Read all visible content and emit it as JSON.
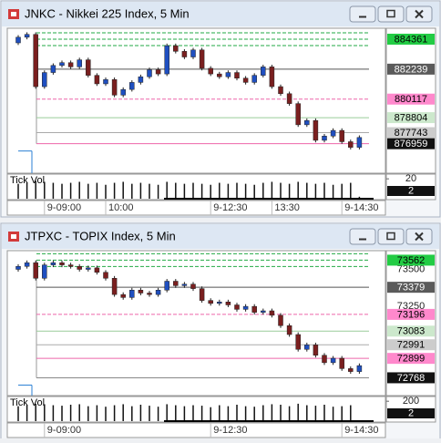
{
  "windows": [
    {
      "title": "JNKC - Nikkei 225 Index, 5 Min",
      "ylim": [
        875000,
        885070
      ],
      "up_color": "#1f4fc0",
      "down_color": "#7a1f1f",
      "levels": [
        {
          "value": 884361,
          "bg": "#22cc44",
          "fg": "#000000",
          "line": "#22aa44",
          "dash": true
        },
        {
          "value": 882239,
          "bg": "#5a5a5a",
          "fg": "#ffffff",
          "line": "#555555",
          "dash": false
        },
        {
          "value": 880117,
          "bg": "#ff88cc",
          "fg": "#000000",
          "line": "#ee66aa",
          "dash": true
        },
        {
          "value": 878804,
          "bg": "#cce8cc",
          "fg": "#000000",
          "line": "#99cc99",
          "dash": false
        },
        {
          "value": 877743,
          "bg": "#cccccc",
          "fg": "#000000",
          "line": "#aaaaaa",
          "dash": false
        },
        {
          "value": 876959,
          "bg": "#111111",
          "fg": "#ffffff",
          "line": "#ee66aa",
          "dash": false
        }
      ],
      "categories": [
        null,
        null,
        null,
        "9-09:00",
        null,
        null,
        null,
        null,
        null,
        null,
        "10:00",
        null,
        null,
        null,
        null,
        null,
        null,
        null,
        null,
        null,
        null,
        null,
        "9-12:30",
        null,
        null,
        null,
        null,
        null,
        null,
        "13:30",
        null,
        null,
        null,
        null,
        null,
        null,
        null,
        "9-14:30",
        null,
        null
      ],
      "candles": [
        [
          884100,
          884650,
          883950,
          884500
        ],
        [
          884500,
          884850,
          884350,
          884700
        ],
        [
          884700,
          884850,
          880850,
          881000
        ],
        [
          881000,
          882150,
          880850,
          882000
        ],
        [
          882000,
          882650,
          881850,
          882500
        ],
        [
          882500,
          882850,
          882350,
          882700
        ],
        [
          882700,
          882850,
          882250,
          882400
        ],
        [
          882400,
          883050,
          882250,
          882900
        ],
        [
          882900,
          883050,
          881650,
          881800
        ],
        [
          881800,
          881950,
          881050,
          881200
        ],
        [
          881200,
          881650,
          881050,
          881500
        ],
        [
          881500,
          881650,
          880250,
          880400
        ],
        [
          880400,
          880950,
          880250,
          880800
        ],
        [
          880800,
          881450,
          880650,
          881300
        ],
        [
          881300,
          881850,
          881150,
          881700
        ],
        [
          881700,
          882350,
          881550,
          882200
        ],
        [
          882200,
          882350,
          881750,
          881900
        ],
        [
          881900,
          884050,
          881750,
          883900
        ],
        [
          883900,
          884050,
          883350,
          883500
        ],
        [
          883500,
          883650,
          882950,
          883100
        ],
        [
          883100,
          883750,
          882950,
          883600
        ],
        [
          883600,
          883750,
          882150,
          882300
        ],
        [
          882300,
          882450,
          881750,
          881900
        ],
        [
          881900,
          882050,
          881550,
          881700
        ],
        [
          881700,
          882150,
          881550,
          882000
        ],
        [
          882000,
          882150,
          881450,
          881600
        ],
        [
          881600,
          881750,
          881150,
          881300
        ],
        [
          881300,
          881950,
          881150,
          881800
        ],
        [
          881800,
          882550,
          881650,
          882400
        ],
        [
          882400,
          882550,
          880850,
          881000
        ],
        [
          881000,
          881150,
          880350,
          880500
        ],
        [
          880500,
          880650,
          879650,
          879800
        ],
        [
          879800,
          879950,
          878150,
          878300
        ],
        [
          878300,
          878750,
          878150,
          878600
        ],
        [
          878600,
          878750,
          877050,
          877200
        ],
        [
          877200,
          877650,
          877050,
          877500
        ],
        [
          877500,
          878050,
          877350,
          877900
        ],
        [
          877900,
          878050,
          876950,
          877100
        ],
        [
          877100,
          877250,
          876550,
          876700
        ],
        [
          876700,
          877550,
          876550,
          877400
        ]
      ],
      "volume": {
        "label": "Tick Vol",
        "ylim": [
          0,
          22
        ],
        "ticks": [
          20
        ],
        "values": [
          15,
          16,
          18,
          17,
          16,
          15,
          16,
          17,
          15,
          16,
          14,
          16,
          17,
          15,
          16,
          15,
          14,
          17,
          16,
          15,
          16,
          15,
          14,
          16,
          15,
          16,
          15,
          14,
          16,
          17,
          16,
          15,
          17,
          16,
          15,
          16,
          14,
          15,
          16,
          2
        ]
      }
    },
    {
      "title": "JTPXC - TOPIX Index, 5 Min",
      "ylim": [
        72660,
        73620
      ],
      "up_color": "#1f4fc0",
      "down_color": "#7a1f1f",
      "yticks": [
        73500,
        73250
      ],
      "levels": [
        {
          "value": 73562,
          "bg": "#22cc44",
          "fg": "#000000",
          "line": "#22aa44",
          "dash": true
        },
        {
          "value": 73379,
          "bg": "#5a5a5a",
          "fg": "#ffffff",
          "line": "#555555",
          "dash": false
        },
        {
          "value": 73196,
          "bg": "#ff88cc",
          "fg": "#000000",
          "line": "#ee66aa",
          "dash": true
        },
        {
          "value": 73083,
          "bg": "#cce8cc",
          "fg": "#000000",
          "line": "#99cc99",
          "dash": false
        },
        {
          "value": 72991,
          "bg": "#cccccc",
          "fg": "#000000",
          "line": "#aaaaaa",
          "dash": false
        },
        {
          "value": 72899,
          "bg": "#ff88cc",
          "fg": "#000000",
          "line": "#ee66aa",
          "dash": false
        },
        {
          "value": 72768,
          "bg": "#111111",
          "fg": "#ffffff",
          "line": "#888888",
          "dash": false
        }
      ],
      "categories": [
        null,
        null,
        null,
        "9-09:00",
        null,
        null,
        null,
        null,
        null,
        null,
        null,
        null,
        null,
        null,
        null,
        null,
        null,
        null,
        null,
        null,
        null,
        null,
        "9-12:30",
        null,
        null,
        null,
        null,
        null,
        null,
        null,
        null,
        null,
        null,
        null,
        null,
        null,
        null,
        "9-14:30",
        null,
        null
      ],
      "candles": [
        [
          73500,
          73535,
          73485,
          73520
        ],
        [
          73520,
          73560,
          73505,
          73545
        ],
        [
          73545,
          73560,
          73425,
          73440
        ],
        [
          73440,
          73545,
          73425,
          73530
        ],
        [
          73530,
          73560,
          73515,
          73545
        ],
        [
          73545,
          73560,
          73515,
          73530
        ],
        [
          73530,
          73545,
          73505,
          73520
        ],
        [
          73520,
          73535,
          73485,
          73500
        ],
        [
          73500,
          73525,
          73485,
          73510
        ],
        [
          73510,
          73525,
          73465,
          73480
        ],
        [
          73480,
          73495,
          73425,
          73440
        ],
        [
          73440,
          73455,
          73315,
          73330
        ],
        [
          73330,
          73345,
          73295,
          73310
        ],
        [
          73310,
          73375,
          73295,
          73360
        ],
        [
          73360,
          73375,
          73325,
          73340
        ],
        [
          73340,
          73355,
          73315,
          73330
        ],
        [
          73330,
          73375,
          73315,
          73360
        ],
        [
          73360,
          73435,
          73345,
          73420
        ],
        [
          73420,
          73435,
          73375,
          73390
        ],
        [
          73390,
          73415,
          73375,
          73400
        ],
        [
          73400,
          73415,
          73355,
          73370
        ],
        [
          73370,
          73385,
          73275,
          73290
        ],
        [
          73290,
          73305,
          73255,
          73270
        ],
        [
          73270,
          73295,
          73255,
          73280
        ],
        [
          73280,
          73295,
          73245,
          73260
        ],
        [
          73260,
          73275,
          73215,
          73230
        ],
        [
          73230,
          73265,
          73215,
          73250
        ],
        [
          73250,
          73265,
          73195,
          73210
        ],
        [
          73210,
          73235,
          73195,
          73220
        ],
        [
          73220,
          73235,
          73175,
          73190
        ],
        [
          73190,
          73205,
          73105,
          73120
        ],
        [
          73120,
          73135,
          73045,
          73060
        ],
        [
          73060,
          73075,
          72945,
          72960
        ],
        [
          72960,
          73005,
          72945,
          72990
        ],
        [
          72990,
          73005,
          72905,
          72920
        ],
        [
          72920,
          72935,
          72855,
          72870
        ],
        [
          72870,
          72915,
          72855,
          72900
        ],
        [
          72900,
          72915,
          72815,
          72830
        ],
        [
          72830,
          72845,
          72795,
          72810
        ],
        [
          72810,
          72865,
          72795,
          72850
        ]
      ],
      "volume": {
        "label": "Tick Vol",
        "ylim": [
          0,
          220
        ],
        "ticks": [
          200
        ],
        "values": [
          150,
          160,
          175,
          170,
          160,
          155,
          165,
          170,
          150,
          160,
          145,
          160,
          170,
          150,
          165,
          155,
          145,
          170,
          160,
          150,
          160,
          155,
          140,
          160,
          150,
          165,
          150,
          145,
          160,
          170,
          165,
          150,
          175,
          160,
          155,
          165,
          145,
          150,
          160,
          2
        ]
      }
    }
  ]
}
